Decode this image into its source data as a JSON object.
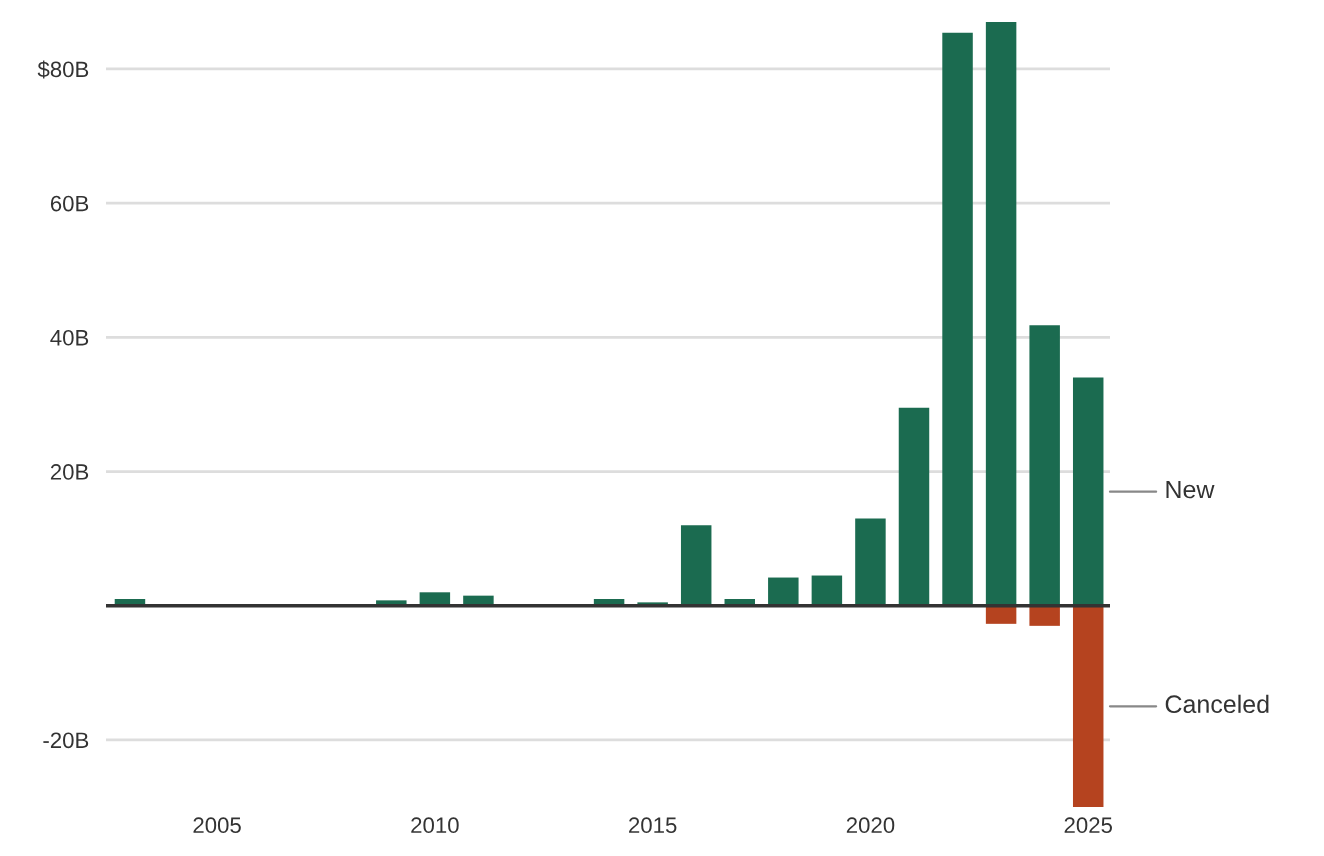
{
  "chart_data": {
    "type": "bar",
    "x": [
      2003,
      2004,
      2005,
      2006,
      2007,
      2008,
      2009,
      2010,
      2011,
      2012,
      2013,
      2014,
      2015,
      2016,
      2017,
      2018,
      2019,
      2020,
      2021,
      2022,
      2023,
      2024,
      2025
    ],
    "series": [
      {
        "name": "New",
        "color": "#1b6b50",
        "values": [
          1,
          0,
          0,
          0,
          0,
          0,
          0.8,
          2,
          1.5,
          0,
          0,
          1,
          0.5,
          12,
          1,
          4.2,
          4.5,
          13,
          29.5,
          85.4,
          87,
          41.8,
          34
        ]
      },
      {
        "name": "Canceled",
        "color": "#b5431f",
        "values": [
          0,
          0,
          0,
          0,
          0,
          0,
          0,
          0,
          0,
          0,
          0,
          0,
          0,
          0,
          0,
          0,
          0,
          0,
          0,
          0,
          -2.7,
          -3,
          -30
        ]
      }
    ],
    "xlim": [
      2002.45,
      2025.5
    ],
    "xticks": [
      2005,
      2010,
      2015,
      2020,
      2025
    ],
    "yticks": [
      {
        "value": -20,
        "label": "-20B"
      },
      {
        "value": 20,
        "label": "20B"
      },
      {
        "value": 40,
        "label": "40B"
      },
      {
        "value": 60,
        "label": "60B"
      },
      {
        "value": 80,
        "label": "$80B"
      }
    ],
    "ylim": [
      -30,
      87
    ],
    "grid": "y"
  }
}
